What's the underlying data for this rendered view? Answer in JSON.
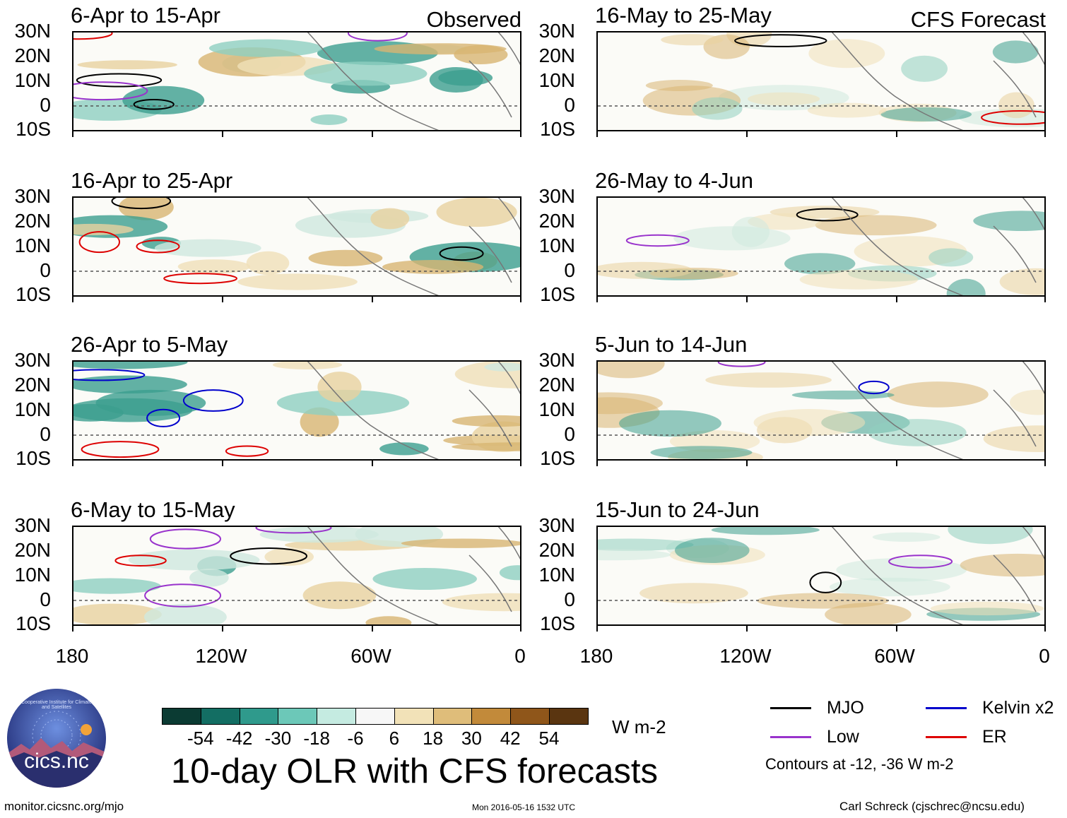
{
  "header": {
    "left_label": "Observed",
    "right_label": "CFS Forecast"
  },
  "axes": {
    "lat_labels": [
      "30N",
      "20N",
      "10N",
      "0",
      "10S"
    ],
    "lon_labels": [
      "180",
      "120W",
      "60W",
      "0"
    ]
  },
  "panels": {
    "observed": [
      {
        "title": "6-Apr to 15-Apr"
      },
      {
        "title": "16-Apr to 25-Apr"
      },
      {
        "title": "26-Apr to 5-May"
      },
      {
        "title": "6-May to 15-May"
      }
    ],
    "forecast": [
      {
        "title": "16-May to 25-May"
      },
      {
        "title": "26-May to 4-Jun"
      },
      {
        "title": "5-Jun to 14-Jun"
      },
      {
        "title": "15-Jun to 24-Jun"
      }
    ]
  },
  "colorbar": {
    "labels": [
      "-54",
      "-42",
      "-30",
      "-18",
      "-6",
      "6",
      "18",
      "30",
      "42",
      "54"
    ],
    "colors": [
      "#0b3b33",
      "#136e63",
      "#2f9a8c",
      "#6cc8b8",
      "#c5ebe1",
      "#f7f7f7",
      "#f2e2b8",
      "#dfbd7a",
      "#c28a3a",
      "#8f561a",
      "#5a3510"
    ],
    "units": "W m-2"
  },
  "legend": {
    "items": [
      {
        "name": "MJO",
        "color": "#000000"
      },
      {
        "name": "Kelvin x2",
        "color": "#0000cc"
      },
      {
        "name": "Low",
        "color": "#9933cc"
      },
      {
        "name": "ER",
        "color": "#dd0000"
      }
    ],
    "note": "Contours at -12, -36 W m-2"
  },
  "main_title": "10-day OLR with CFS forecasts",
  "footer": {
    "url": "monitor.cicsnc.org/mjo",
    "timestamp": "Mon 2016-05-16 1532 UTC",
    "credit": "Carl Schreck (cjschrec@ncsu.edu)"
  },
  "logo": {
    "text": "cics.nc",
    "ring_text": "Cooperative Institute for Climate and Satellites"
  }
}
